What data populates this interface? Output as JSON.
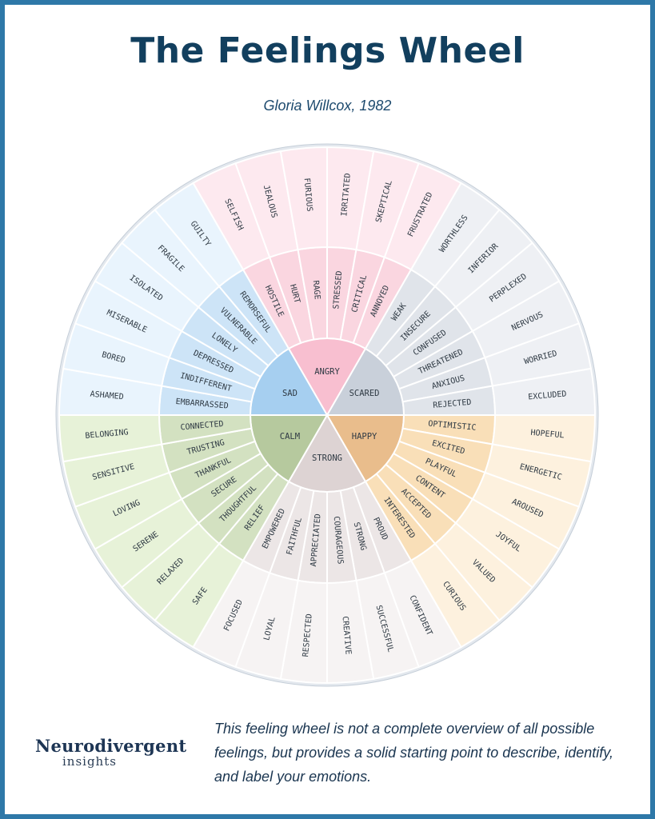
{
  "title": "The Feelings Wheel",
  "subtitle": "Gloria Willcox, 1982",
  "footnote": "This feeling wheel is not a complete overview of all possible feelings, but provides a solid starting point to describe, identify, and label your emotions.",
  "logo": {
    "main": "Neurodivergent",
    "sub": "insights"
  },
  "colors": {
    "frame": "#2e78a8",
    "title": "#123f5e"
  },
  "wheel": {
    "groups": [
      {
        "core": "ANGRY",
        "core_color": "#f8bfd0",
        "mid_color": "#fad6e0",
        "outer_color": "#fde9ef",
        "mid": [
          "HOSTILE",
          "HURT",
          "RAGE",
          "STRESSED",
          "CRITICAL",
          "ANNOYED"
        ],
        "outer": [
          "SELFISH",
          "JEALOUS",
          "FURIOUS",
          "IRRITATED",
          "SKEPTICAL",
          "FRUSTRATED"
        ]
      },
      {
        "core": "SCARED",
        "core_color": "#c9d0da",
        "mid_color": "#e0e4ea",
        "outer_color": "#eef0f4",
        "mid": [
          "WEAK",
          "INSECURE",
          "CONFUSED",
          "THREATENED",
          "ANXIOUS",
          "REJECTED"
        ],
        "outer": [
          "WORTHLESS",
          "INFERIOR",
          "PERPLEXED",
          "NERVOUS",
          "WORRIED",
          "EXCLUDED"
        ]
      },
      {
        "core": "HAPPY",
        "core_color": "#e9bd8c",
        "mid_color": "#f9dfb8",
        "outer_color": "#fdf1de",
        "mid": [
          "OPTIMISTIC",
          "EXCITED",
          "PLAYFUL",
          "CONTENT",
          "ACCEPTED",
          "INTERESTED"
        ],
        "outer": [
          "HOPEFUL",
          "ENERGETIC",
          "AROUSED",
          "JOYFUL",
          "VALUED",
          "CURIOUS"
        ]
      },
      {
        "core": "STRONG",
        "core_color": "#ddd3d3",
        "mid_color": "#ece6e6",
        "outer_color": "#f6f3f3",
        "mid": [
          "PROUD",
          "STRONG",
          "COURAGEOUS",
          "APPRECIATED",
          "FAITHFUL",
          "EMPOWERED"
        ],
        "outer": [
          "CONFIDENT",
          "SUCCESSFUL",
          "CREATIVE",
          "RESPECTED",
          "LOYAL",
          "FOCUSED"
        ]
      },
      {
        "core": "CALM",
        "core_color": "#b6c99e",
        "mid_color": "#d3e1c1",
        "outer_color": "#e7f2d8",
        "mid": [
          "RELIEF",
          "THOUGHTFUL",
          "SECURE",
          "THANKFUL",
          "TRUSTING",
          "CONNECTED"
        ],
        "outer": [
          "SAFE",
          "RELAXED",
          "SERENE",
          "LOVING",
          "SENSITIVE",
          "BELONGING"
        ]
      },
      {
        "core": "SAD",
        "core_color": "#a6cff0",
        "mid_color": "#cde4f7",
        "outer_color": "#e9f4fd",
        "mid": [
          "EMBARRASSED",
          "INDIFFERENT",
          "DEPRESSED",
          "LONELY",
          "VULNERABLE",
          "REMORSEFUL"
        ],
        "outer": [
          "ASHAMED",
          "BORED",
          "MISERABLE",
          "ISOLATED",
          "FRAGILE",
          "GUILTY"
        ]
      }
    ]
  }
}
